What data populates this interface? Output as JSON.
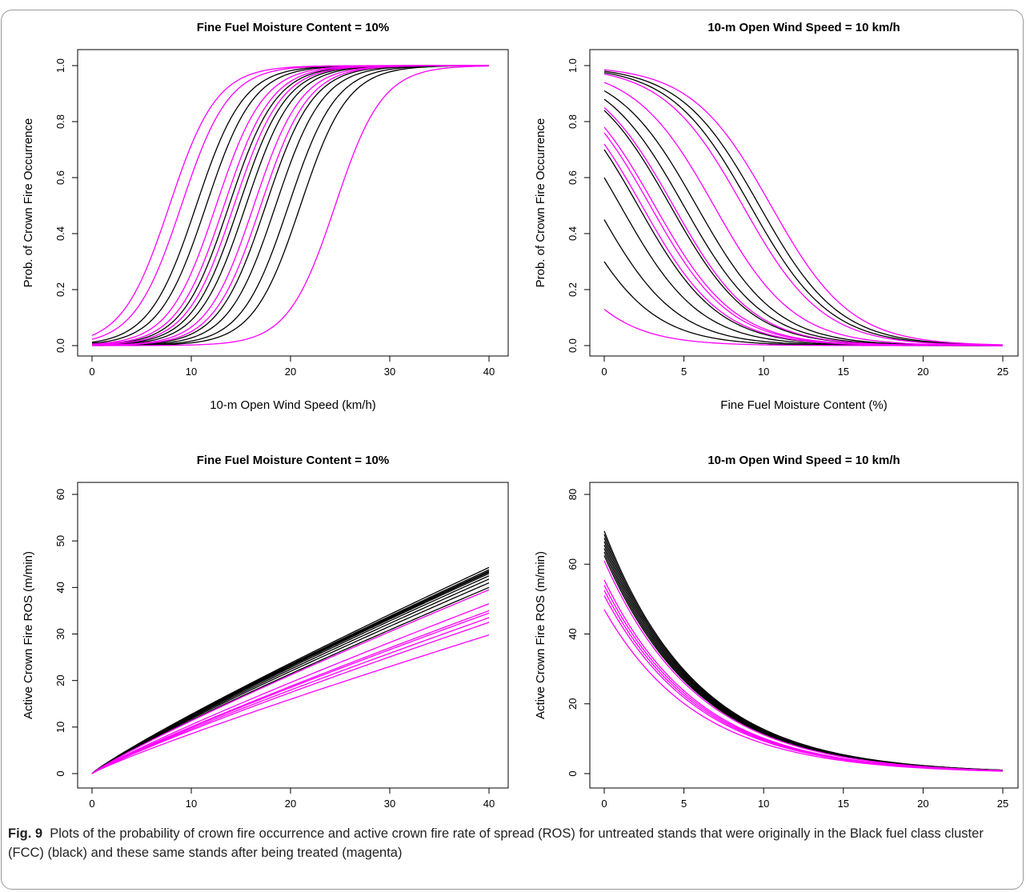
{
  "chart_data": [
    {
      "type": "line",
      "title": "Fine Fuel Moisture Content = 10%",
      "xlabel": "10-m Open Wind Speed (km/h)",
      "ylabel": "Prob. of Crown Fire Occurrence",
      "xlim": [
        0,
        40
      ],
      "ylim": [
        0,
        1
      ],
      "xticks": [
        0,
        10,
        20,
        30,
        40
      ],
      "yticks": [
        0.0,
        0.2,
        0.4,
        0.6,
        0.8,
        1.0
      ],
      "ytick_labels": [
        "0.0",
        "0.2",
        "0.4",
        "0.6",
        "0.8",
        "1.0"
      ],
      "curve_model": "logistic",
      "series": [
        {
          "color": "#000000",
          "x50": 10.5,
          "k": 0.42
        },
        {
          "color": "#000000",
          "x50": 11.5,
          "k": 0.42
        },
        {
          "color": "#000000",
          "x50": 13.8,
          "k": 0.42
        },
        {
          "color": "#000000",
          "x50": 14.8,
          "k": 0.42
        },
        {
          "color": "#000000",
          "x50": 15.5,
          "k": 0.42
        },
        {
          "color": "#000000",
          "x50": 17.5,
          "k": 0.42
        },
        {
          "color": "#000000",
          "x50": 18.5,
          "k": 0.42
        },
        {
          "color": "#000000",
          "x50": 19.8,
          "k": 0.42
        },
        {
          "color": "#000000",
          "x50": 21.0,
          "k": 0.42
        },
        {
          "color": "#FF00FF",
          "x50": 7.8,
          "k": 0.42
        },
        {
          "color": "#FF00FF",
          "x50": 9.0,
          "k": 0.42
        },
        {
          "color": "#FF00FF",
          "x50": 12.5,
          "k": 0.42
        },
        {
          "color": "#FF00FF",
          "x50": 13.3,
          "k": 0.42
        },
        {
          "color": "#FF00FF",
          "x50": 14.3,
          "k": 0.42
        },
        {
          "color": "#FF00FF",
          "x50": 16.3,
          "k": 0.42
        },
        {
          "color": "#FF00FF",
          "x50": 17.0,
          "k": 0.42
        },
        {
          "color": "#FF00FF",
          "x50": 24.5,
          "k": 0.42
        }
      ]
    },
    {
      "type": "line",
      "title": "10-m Open Wind Speed = 10 km/h",
      "xlabel": "Fine Fuel Moisture Content (%)",
      "ylabel": "Prob. of Crown Fire Occurrence",
      "xlim": [
        0,
        25
      ],
      "ylim": [
        0,
        1
      ],
      "xticks": [
        0,
        5,
        10,
        15,
        20,
        25
      ],
      "yticks": [
        0.0,
        0.2,
        0.4,
        0.6,
        0.8,
        1.0
      ],
      "ytick_labels": [
        "0.0",
        "0.2",
        "0.4",
        "0.6",
        "0.8",
        "1.0"
      ],
      "curve_model": "logistic_decreasing",
      "series": [
        {
          "color": "#000000",
          "p0": 0.98,
          "k": 0.4
        },
        {
          "color": "#000000",
          "p0": 0.975,
          "k": 0.4
        },
        {
          "color": "#000000",
          "p0": 0.91,
          "k": 0.4
        },
        {
          "color": "#000000",
          "p0": 0.88,
          "k": 0.4
        },
        {
          "color": "#000000",
          "p0": 0.84,
          "k": 0.4
        },
        {
          "color": "#000000",
          "p0": 0.7,
          "k": 0.4
        },
        {
          "color": "#000000",
          "p0": 0.6,
          "k": 0.4
        },
        {
          "color": "#000000",
          "p0": 0.45,
          "k": 0.4
        },
        {
          "color": "#000000",
          "p0": 0.3,
          "k": 0.4
        },
        {
          "color": "#FF00FF",
          "p0": 0.985,
          "k": 0.4
        },
        {
          "color": "#FF00FF",
          "p0": 0.97,
          "k": 0.4
        },
        {
          "color": "#FF00FF",
          "p0": 0.94,
          "k": 0.4
        },
        {
          "color": "#FF00FF",
          "p0": 0.85,
          "k": 0.4
        },
        {
          "color": "#FF00FF",
          "p0": 0.78,
          "k": 0.4
        },
        {
          "color": "#FF00FF",
          "p0": 0.76,
          "k": 0.4
        },
        {
          "color": "#FF00FF",
          "p0": 0.72,
          "k": 0.4
        },
        {
          "color": "#FF00FF",
          "p0": 0.13,
          "k": 0.4
        }
      ]
    },
    {
      "type": "line",
      "title": "Fine Fuel Moisture Content = 10%",
      "xlabel": "10-m Open Wind Speed (km/h)",
      "ylabel": "Active Crown Fire ROS (m/min)",
      "xlim": [
        0,
        40
      ],
      "ylim": [
        0,
        60
      ],
      "xticks": [
        0,
        10,
        20,
        30,
        40
      ],
      "yticks": [
        0,
        10,
        20,
        30,
        40,
        50,
        60
      ],
      "ytick_labels": [
        "0",
        "10",
        "20",
        "30",
        "40",
        "50",
        "60"
      ],
      "curve_model": "power",
      "series": [
        {
          "color": "#000000",
          "y40": 44.3
        },
        {
          "color": "#000000",
          "y40": 43.8
        },
        {
          "color": "#000000",
          "y40": 43.5
        },
        {
          "color": "#000000",
          "y40": 43.3
        },
        {
          "color": "#000000",
          "y40": 43.0
        },
        {
          "color": "#000000",
          "y40": 42.5
        },
        {
          "color": "#000000",
          "y40": 41.8
        },
        {
          "color": "#000000",
          "y40": 41.0
        },
        {
          "color": "#000000",
          "y40": 40.0
        },
        {
          "color": "#FF00FF",
          "y40": 39.5
        },
        {
          "color": "#FF00FF",
          "y40": 36.5
        },
        {
          "color": "#FF00FF",
          "y40": 35.0
        },
        {
          "color": "#FF00FF",
          "y40": 34.5
        },
        {
          "color": "#FF00FF",
          "y40": 33.5
        },
        {
          "color": "#FF00FF",
          "y40": 32.5
        },
        {
          "color": "#FF00FF",
          "y40": 29.8
        }
      ]
    },
    {
      "type": "line",
      "title": "10-m Open Wind Speed = 10 km/h",
      "xlabel": "Fine Fuel Moisture Content (%)",
      "ylabel": "Active Crown Fire ROS (m/min)",
      "xlim": [
        0,
        25
      ],
      "ylim": [
        0,
        80
      ],
      "xticks": [
        0,
        5,
        10,
        15,
        20,
        25
      ],
      "yticks": [
        0,
        20,
        40,
        60,
        80
      ],
      "ytick_labels": [
        "0",
        "20",
        "40",
        "60",
        "80"
      ],
      "curve_model": "exp_decay",
      "series": [
        {
          "color": "#000000",
          "y0": 69.5
        },
        {
          "color": "#000000",
          "y0": 68.5
        },
        {
          "color": "#000000",
          "y0": 67.5
        },
        {
          "color": "#000000",
          "y0": 66.5
        },
        {
          "color": "#000000",
          "y0": 65.5
        },
        {
          "color": "#000000",
          "y0": 64.5
        },
        {
          "color": "#000000",
          "y0": 63.5
        },
        {
          "color": "#000000",
          "y0": 62.5
        },
        {
          "color": "#FF00FF",
          "y0": 61.0
        },
        {
          "color": "#FF00FF",
          "y0": 55.5
        },
        {
          "color": "#FF00FF",
          "y0": 54.0
        },
        {
          "color": "#FF00FF",
          "y0": 52.5
        },
        {
          "color": "#FF00FF",
          "y0": 51.0
        },
        {
          "color": "#FF00FF",
          "y0": 47.0
        }
      ]
    }
  ],
  "caption": {
    "fig_label": "Fig. 9",
    "text": "Plots of the probability of crown fire occurrence and active crown fire rate of spread (ROS) for untreated stands that were originally in the Black fuel class cluster (FCC) (black) and these same stands after being treated (magenta)"
  }
}
